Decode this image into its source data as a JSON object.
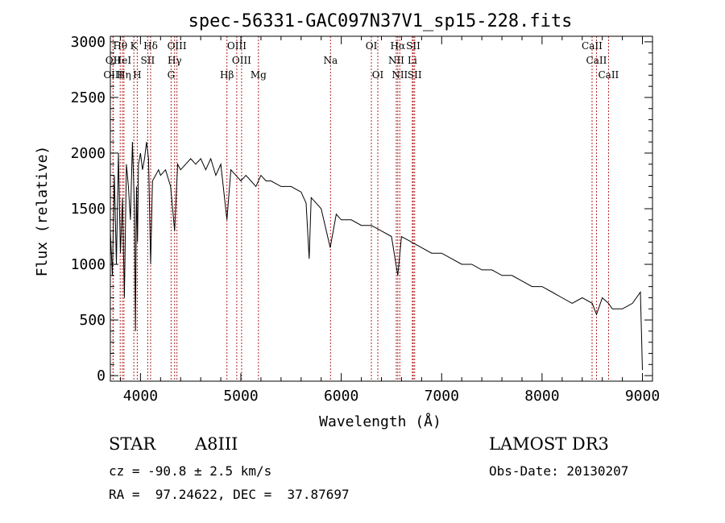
{
  "chart_data": {
    "type": "line",
    "title": "spec-56331-GAC097N37V1_sp15-228.fits",
    "xlabel": "Wavelength (Å)",
    "ylabel": "Flux (relative)",
    "xlim": [
      3700,
      9100
    ],
    "ylim": [
      -50,
      3050
    ],
    "xticks": [
      4000,
      5000,
      6000,
      7000,
      8000,
      9000
    ],
    "yticks": [
      0,
      500,
      1000,
      1500,
      2000,
      2500,
      3000
    ],
    "grid": false,
    "spectrum": {
      "name": "flux",
      "x": [
        3700,
        3720,
        3740,
        3760,
        3780,
        3800,
        3820,
        3840,
        3860,
        3880,
        3900,
        3920,
        3940,
        3950,
        3960,
        3970,
        3980,
        4000,
        4020,
        4040,
        4060,
        4080,
        4101,
        4120,
        4150,
        4180,
        4200,
        4250,
        4300,
        4340,
        4370,
        4400,
        4450,
        4500,
        4550,
        4600,
        4650,
        4700,
        4750,
        4800,
        4861,
        4900,
        4950,
        5000,
        5050,
        5100,
        5150,
        5200,
        5250,
        5300,
        5400,
        5500,
        5600,
        5650,
        5680,
        5700,
        5750,
        5800,
        5890,
        5950,
        6000,
        6100,
        6200,
        6300,
        6400,
        6500,
        6563,
        6600,
        6700,
        6800,
        6900,
        7000,
        7100,
        7200,
        7300,
        7400,
        7500,
        7600,
        7700,
        7800,
        7900,
        8000,
        8100,
        8200,
        8300,
        8400,
        8500,
        8542,
        8600,
        8662,
        8700,
        8800,
        8900,
        8980,
        9000
      ],
      "y": [
        1300,
        900,
        1800,
        1000,
        2000,
        1100,
        1600,
        700,
        1900,
        1700,
        1400,
        2100,
        1500,
        400,
        1700,
        1200,
        1900,
        2000,
        1850,
        1950,
        2100,
        1950,
        1000,
        1750,
        1800,
        1850,
        1800,
        1850,
        1700,
        1300,
        1900,
        1850,
        1900,
        1950,
        1900,
        1950,
        1850,
        1950,
        1800,
        1900,
        1400,
        1850,
        1800,
        1750,
        1800,
        1750,
        1700,
        1800,
        1750,
        1750,
        1700,
        1700,
        1650,
        1550,
        1050,
        1600,
        1550,
        1500,
        1150,
        1450,
        1400,
        1400,
        1350,
        1350,
        1300,
        1250,
        900,
        1250,
        1200,
        1150,
        1100,
        1100,
        1050,
        1000,
        1000,
        950,
        950,
        900,
        900,
        850,
        800,
        800,
        750,
        700,
        650,
        700,
        650,
        550,
        700,
        650,
        600,
        600,
        650,
        750,
        50
      ]
    },
    "lines": [
      {
        "label": "Hθ",
        "wave": 3798,
        "row": 0
      },
      {
        "label": "K",
        "wave": 3934,
        "row": 0
      },
      {
        "label": "Hδ",
        "wave": 4101,
        "row": 0
      },
      {
        "label": "OIII",
        "wave": 4363,
        "row": 0
      },
      {
        "label": "OIII",
        "wave": 4959,
        "row": 0
      },
      {
        "label": "OI",
        "wave": 6300,
        "row": 0
      },
      {
        "label": "Hα",
        "wave": 6563,
        "row": 0
      },
      {
        "label": "SII",
        "wave": 6717,
        "row": 0
      },
      {
        "label": "CaII",
        "wave": 8498,
        "row": 0
      },
      {
        "label": "OII",
        "wave": 3727,
        "row": 1
      },
      {
        "label": "HeI",
        "wave": 3820,
        "row": 1
      },
      {
        "label": "SII",
        "wave": 4072,
        "row": 1
      },
      {
        "label": "Hγ",
        "wave": 4340,
        "row": 1
      },
      {
        "label": "OIII",
        "wave": 5007,
        "row": 1
      },
      {
        "label": "Na",
        "wave": 5893,
        "row": 1
      },
      {
        "label": "NII",
        "wave": 6548,
        "row": 1
      },
      {
        "label": "Li",
        "wave": 6708,
        "row": 1
      },
      {
        "label": "CaII",
        "wave": 8542,
        "row": 1
      },
      {
        "label": "OIII",
        "wave": 3727,
        "row": 2
      },
      {
        "label": "Hη",
        "wave": 3835,
        "row": 2
      },
      {
        "label": "H",
        "wave": 3968,
        "row": 2
      },
      {
        "label": "G",
        "wave": 4305,
        "row": 2
      },
      {
        "label": "Hβ",
        "wave": 4861,
        "row": 2
      },
      {
        "label": "Mg",
        "wave": 5175,
        "row": 2
      },
      {
        "label": "OI",
        "wave": 6364,
        "row": 2
      },
      {
        "label": "NII",
        "wave": 6583,
        "row": 2
      },
      {
        "label": "SII",
        "wave": 6731,
        "row": 2
      },
      {
        "label": "CaII",
        "wave": 8662,
        "row": 2
      }
    ]
  },
  "info": {
    "object_class": "STAR",
    "subclass": "A8III",
    "survey": "LAMOST DR3",
    "cz": "cz = -90.8 ± 2.5 km/s",
    "obs_date": "Obs-Date: 20130207",
    "coords": "RA =  97.24622, DEC =  37.87697"
  },
  "colors": {
    "spectrum": "#000000",
    "line_markers": "#b22222",
    "axes": "#000000"
  }
}
